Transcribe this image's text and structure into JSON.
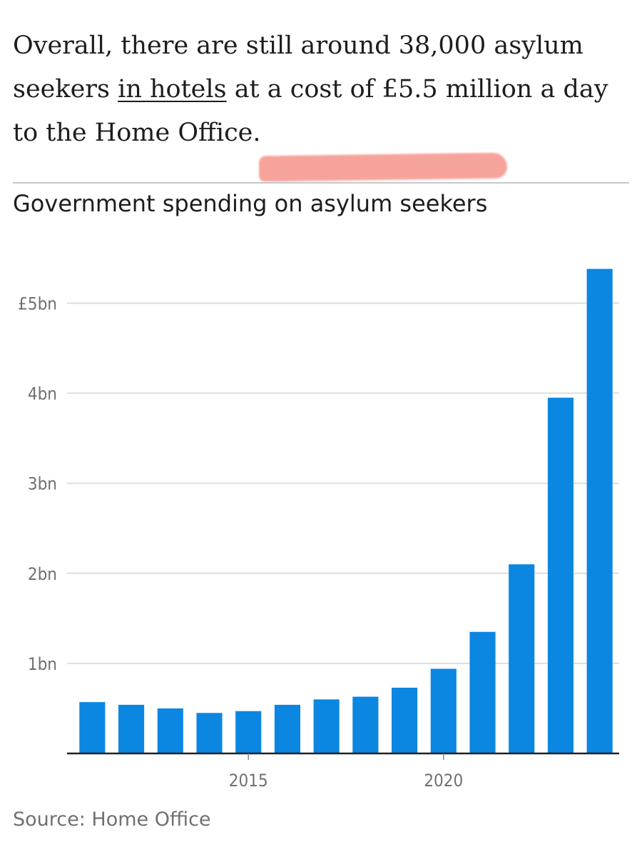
{
  "article": {
    "text_before_link": "Overall, there are still around 38,000 asylum seekers ",
    "link_text": "in hotels",
    "text_after_link": " at a cost of £5.5 million a day to the Home Office."
  },
  "chart_data": {
    "type": "bar",
    "title": "Government spending on asylum seekers",
    "xlabel": "",
    "ylabel": "",
    "x": [
      2011,
      2012,
      2013,
      2014,
      2015,
      2016,
      2017,
      2018,
      2019,
      2020,
      2021,
      2022,
      2023,
      2024
    ],
    "values": [
      0.57,
      0.54,
      0.5,
      0.45,
      0.47,
      0.54,
      0.6,
      0.63,
      0.73,
      0.94,
      1.35,
      2.1,
      3.95,
      5.38
    ],
    "value_unit": "£bn",
    "ylim": [
      0,
      5.4
    ],
    "y_ticks": [
      1,
      2,
      3,
      4,
      5
    ],
    "y_tick_labels": [
      "1bn",
      "2bn",
      "3bn",
      "4bn",
      "£5bn"
    ],
    "x_ticks": [
      2015,
      2020
    ],
    "x_tick_labels": [
      "2015",
      "2020"
    ],
    "grid": true,
    "bar_color": "#0b87e2",
    "source": "Source: Home Office"
  },
  "colors": {
    "highlight": "#f48a7f",
    "text": "#1d1d1d",
    "muted": "#707070",
    "gridline": "#dddddd"
  }
}
